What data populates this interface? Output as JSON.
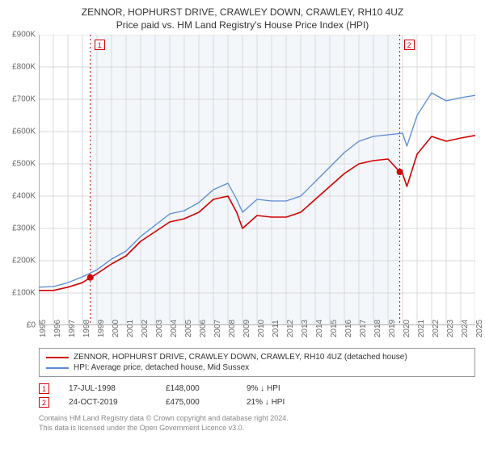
{
  "title": {
    "line1": "ZENNOR, HOPHURST DRIVE, CRAWLEY DOWN, CRAWLEY, RH10 4UZ",
    "line2": "Price paid vs. HM Land Registry's House Price Index (HPI)",
    "fontsize": 12,
    "color": "#333333"
  },
  "chart": {
    "type": "line",
    "background_color": "#ffffff",
    "shaded_band_color": "#f3f6fb",
    "shaded_band": {
      "x_start": 1998.54,
      "x_end": 2019.81
    },
    "xlim": [
      1995,
      2025
    ],
    "ylim": [
      0,
      900
    ],
    "x_ticks": [
      1995,
      1996,
      1997,
      1998,
      1999,
      2000,
      2001,
      2002,
      2003,
      2004,
      2005,
      2006,
      2007,
      2008,
      2009,
      2010,
      2011,
      2012,
      2013,
      2014,
      2015,
      2016,
      2017,
      2018,
      2019,
      2020,
      2021,
      2022,
      2023,
      2024,
      2025
    ],
    "y_ticks": [
      0,
      100,
      200,
      300,
      400,
      500,
      600,
      700,
      800,
      900
    ],
    "y_tick_prefix": "£",
    "y_tick_suffix": "K",
    "y_zero_label": "£0",
    "grid_color": "#d9d9d9",
    "axis_color": "#666666",
    "tick_label_fontsize": 10,
    "tick_label_color": "#666666",
    "sale_line_color": "#d00000",
    "sale_line_dash": "2,3",
    "series": [
      {
        "name": "subject",
        "label": "ZENNOR, HOPHURST DRIVE, CRAWLEY DOWN, CRAWLEY, RH10 4UZ (detached house)",
        "color": "#d00000",
        "line_width": 1.6,
        "data": [
          [
            1995,
            108
          ],
          [
            1996,
            108
          ],
          [
            1997,
            118
          ],
          [
            1998,
            132
          ],
          [
            1998.54,
            148
          ],
          [
            1999,
            160
          ],
          [
            2000,
            190
          ],
          [
            2001,
            215
          ],
          [
            2002,
            260
          ],
          [
            2003,
            290
          ],
          [
            2004,
            320
          ],
          [
            2005,
            330
          ],
          [
            2006,
            350
          ],
          [
            2007,
            390
          ],
          [
            2008,
            400
          ],
          [
            2008.6,
            350
          ],
          [
            2009,
            300
          ],
          [
            2010,
            340
          ],
          [
            2011,
            335
          ],
          [
            2012,
            335
          ],
          [
            2013,
            350
          ],
          [
            2014,
            390
          ],
          [
            2015,
            430
          ],
          [
            2016,
            470
          ],
          [
            2017,
            500
          ],
          [
            2018,
            510
          ],
          [
            2019,
            515
          ],
          [
            2019.81,
            475
          ],
          [
            2020,
            470
          ],
          [
            2020.3,
            430
          ],
          [
            2021,
            530
          ],
          [
            2022,
            585
          ],
          [
            2023,
            570
          ],
          [
            2024,
            580
          ],
          [
            2025,
            588
          ]
        ]
      },
      {
        "name": "hpi",
        "label": "HPI: Average price, detached house, Mid Sussex",
        "color": "#5b8bd4",
        "line_width": 1.3,
        "data": [
          [
            1995,
            118
          ],
          [
            1996,
            120
          ],
          [
            1997,
            132
          ],
          [
            1998,
            150
          ],
          [
            1999,
            172
          ],
          [
            2000,
            205
          ],
          [
            2001,
            230
          ],
          [
            2002,
            275
          ],
          [
            2003,
            310
          ],
          [
            2004,
            345
          ],
          [
            2005,
            355
          ],
          [
            2006,
            380
          ],
          [
            2007,
            420
          ],
          [
            2008,
            440
          ],
          [
            2008.6,
            390
          ],
          [
            2009,
            350
          ],
          [
            2010,
            390
          ],
          [
            2011,
            385
          ],
          [
            2012,
            385
          ],
          [
            2013,
            400
          ],
          [
            2014,
            445
          ],
          [
            2015,
            490
          ],
          [
            2016,
            535
          ],
          [
            2017,
            570
          ],
          [
            2018,
            585
          ],
          [
            2019,
            590
          ],
          [
            2020,
            595
          ],
          [
            2020.3,
            555
          ],
          [
            2021,
            650
          ],
          [
            2022,
            720
          ],
          [
            2023,
            695
          ],
          [
            2024,
            705
          ],
          [
            2025,
            712
          ]
        ]
      }
    ],
    "sale_markers": [
      {
        "n": "1",
        "x": 1998.54,
        "y": 148,
        "color": "#d00000",
        "dot_radius": 4
      },
      {
        "n": "2",
        "x": 2019.81,
        "y": 475,
        "color": "#d00000",
        "dot_radius": 4
      }
    ]
  },
  "legend": {
    "border_color": "#999999",
    "fontsize": 10
  },
  "sales_table": {
    "rows": [
      {
        "n": "1",
        "date": "17-JUL-1998",
        "price": "£148,000",
        "pct": "9% ↓ HPI",
        "color": "#d00000"
      },
      {
        "n": "2",
        "date": "24-OCT-2019",
        "price": "£475,000",
        "pct": "21% ↓ HPI",
        "color": "#d00000"
      }
    ]
  },
  "footer": {
    "line1": "Contains HM Land Registry data © Crown copyright and database right 2024.",
    "line2": "This data is licensed under the Open Government Licence v3.0.",
    "color": "#888888",
    "fontsize": 9
  }
}
